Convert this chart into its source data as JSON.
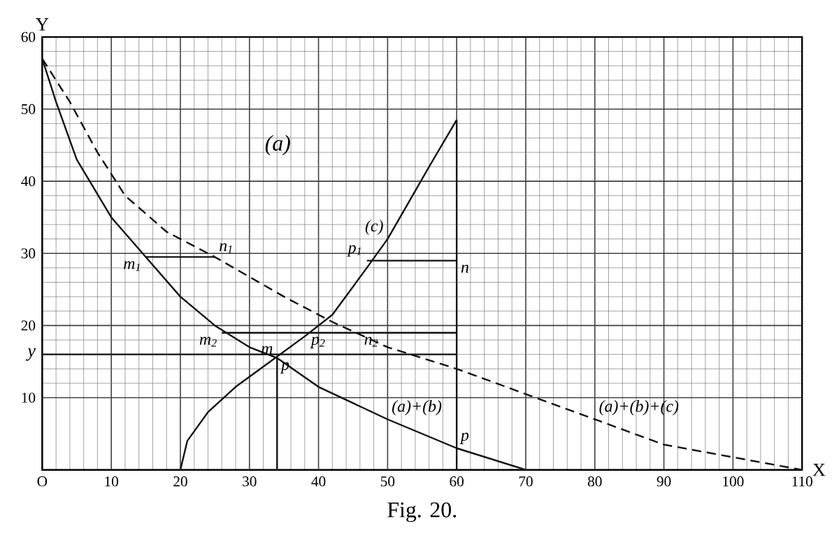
{
  "chart_data": {
    "type": "line",
    "title": "Fig. 20.",
    "xlabel": "X",
    "ylabel": "Y",
    "xlim": [
      0,
      110
    ],
    "ylim": [
      0,
      60
    ],
    "xticks": [
      {
        "value": 0,
        "label": "O"
      },
      10,
      20,
      30,
      40,
      50,
      60,
      70,
      80,
      90,
      100,
      110
    ],
    "yticks": [
      10,
      20,
      30,
      40,
      50,
      60,
      {
        "value": 16,
        "label": "y"
      }
    ],
    "grid": true,
    "series": [
      {
        "color": "#111111",
        "line_style": "solid",
        "x": [
          0,
          2,
          5,
          10,
          15,
          20,
          25,
          30,
          34,
          40,
          50,
          60,
          70
        ],
        "values": [
          57,
          51,
          43,
          35,
          29.5,
          24,
          20,
          17,
          15.5,
          11.5,
          7,
          3,
          0
        ]
      },
      {
        "color": "#111111",
        "line_style": "solid",
        "x": [
          20,
          21,
          24,
          28,
          33,
          38,
          42,
          47,
          50,
          53,
          56,
          60
        ],
        "values": [
          0,
          4,
          8,
          11.5,
          15,
          18.5,
          21.5,
          28,
          32,
          37,
          42,
          48.5
        ]
      },
      {
        "color": "#111111",
        "line_style": "dashed",
        "x": [
          0,
          4,
          8,
          12,
          18,
          25,
          35,
          42,
          50,
          60,
          70,
          80,
          90,
          110
        ],
        "values": [
          57,
          51,
          44,
          38,
          33,
          29.5,
          24,
          20.5,
          17,
          14,
          10.5,
          7,
          3.5,
          0
        ]
      },
      {
        "color": "#111111",
        "line_style": "solid",
        "x": [
          15,
          25
        ],
        "values": [
          29.5,
          29.5
        ]
      },
      {
        "color": "#111111",
        "line_style": "solid",
        "x": [
          47,
          60
        ],
        "values": [
          29,
          29
        ]
      },
      {
        "color": "#111111",
        "line_style": "solid",
        "x": [
          26,
          60
        ],
        "values": [
          19,
          19
        ]
      },
      {
        "color": "#111111",
        "line_style": "solid",
        "x": [
          0,
          60
        ],
        "values": [
          16,
          16
        ]
      },
      {
        "color": "#111111",
        "line_style": "solid",
        "x": [
          34,
          34
        ],
        "values": [
          0,
          15.5
        ]
      },
      {
        "color": "#111111",
        "line_style": "solid",
        "x": [
          60,
          60
        ],
        "values": [
          0,
          48.5
        ]
      }
    ],
    "annotations": [
      "(a)",
      {
        "text": "(c)",
        "x": 50,
        "y": 32
      },
      {
        "text": "(a)+(b)",
        "x": 50,
        "y": 7
      },
      {
        "text": "(a)+(b)+(c)",
        "x": 80,
        "y": 7
      },
      {
        "text": "m$_{1}$",
        "x": 15,
        "y": 29.5
      },
      {
        "text": "n$_{1}$",
        "x": 25,
        "y": 29.5
      },
      {
        "text": "p$_{1}$",
        "x": 47,
        "y": 29
      },
      {
        "text": "n",
        "x": 60,
        "y": 29
      },
      {
        "text": "m$_{2}$",
        "x": 26,
        "y": 19
      },
      {
        "text": "m",
        "x": 34,
        "y": 15.5
      },
      {
        "text": "p",
        "x": 34,
        "y": 15.5
      },
      {
        "text": "p$_{2}$",
        "x": 40,
        "y": 19
      },
      {
        "text": "n$_{2}$",
        "x": 46,
        "y": 19
      },
      {
        "text": "p",
        "x": 60,
        "y": 3
      }
    ]
  }
}
